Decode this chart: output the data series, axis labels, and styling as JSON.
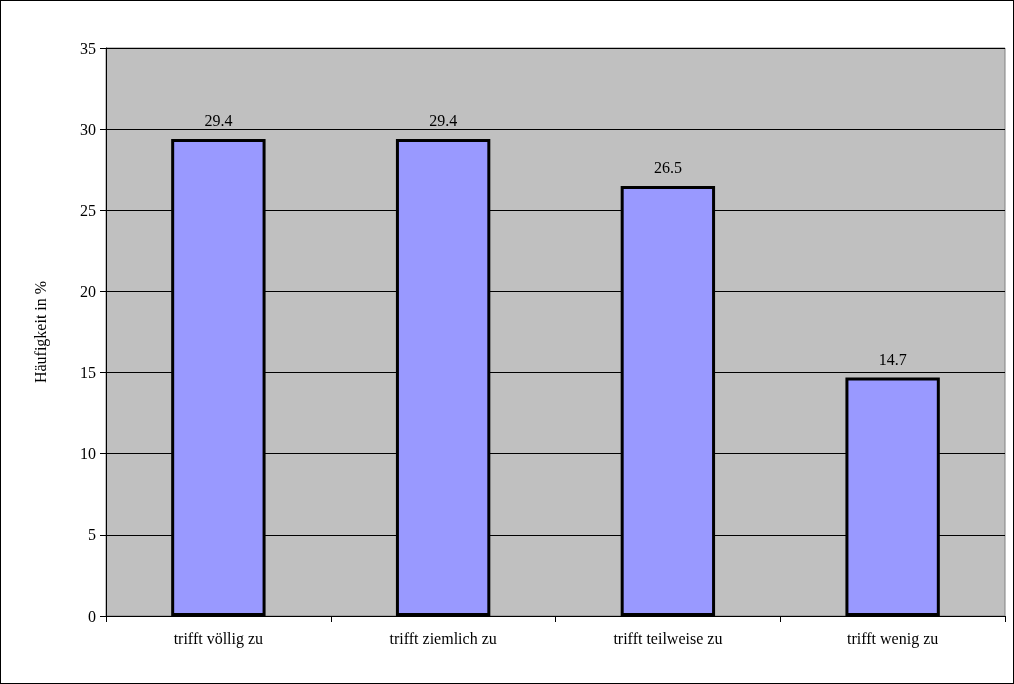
{
  "chart_data": {
    "type": "bar",
    "ylabel": "Häufigkeit in %",
    "categories": [
      "trifft völlig zu",
      "trifft ziemlich zu",
      "trifft teilweise zu",
      "trifft wenig zu"
    ],
    "values": [
      29.4,
      29.4,
      26.5,
      14.7
    ],
    "color": "#9999ff",
    "ylim": [
      0,
      35
    ],
    "yticks": [
      0,
      5,
      10,
      15,
      20,
      25,
      30,
      35
    ],
    "grid": "y",
    "data_labels": true
  }
}
